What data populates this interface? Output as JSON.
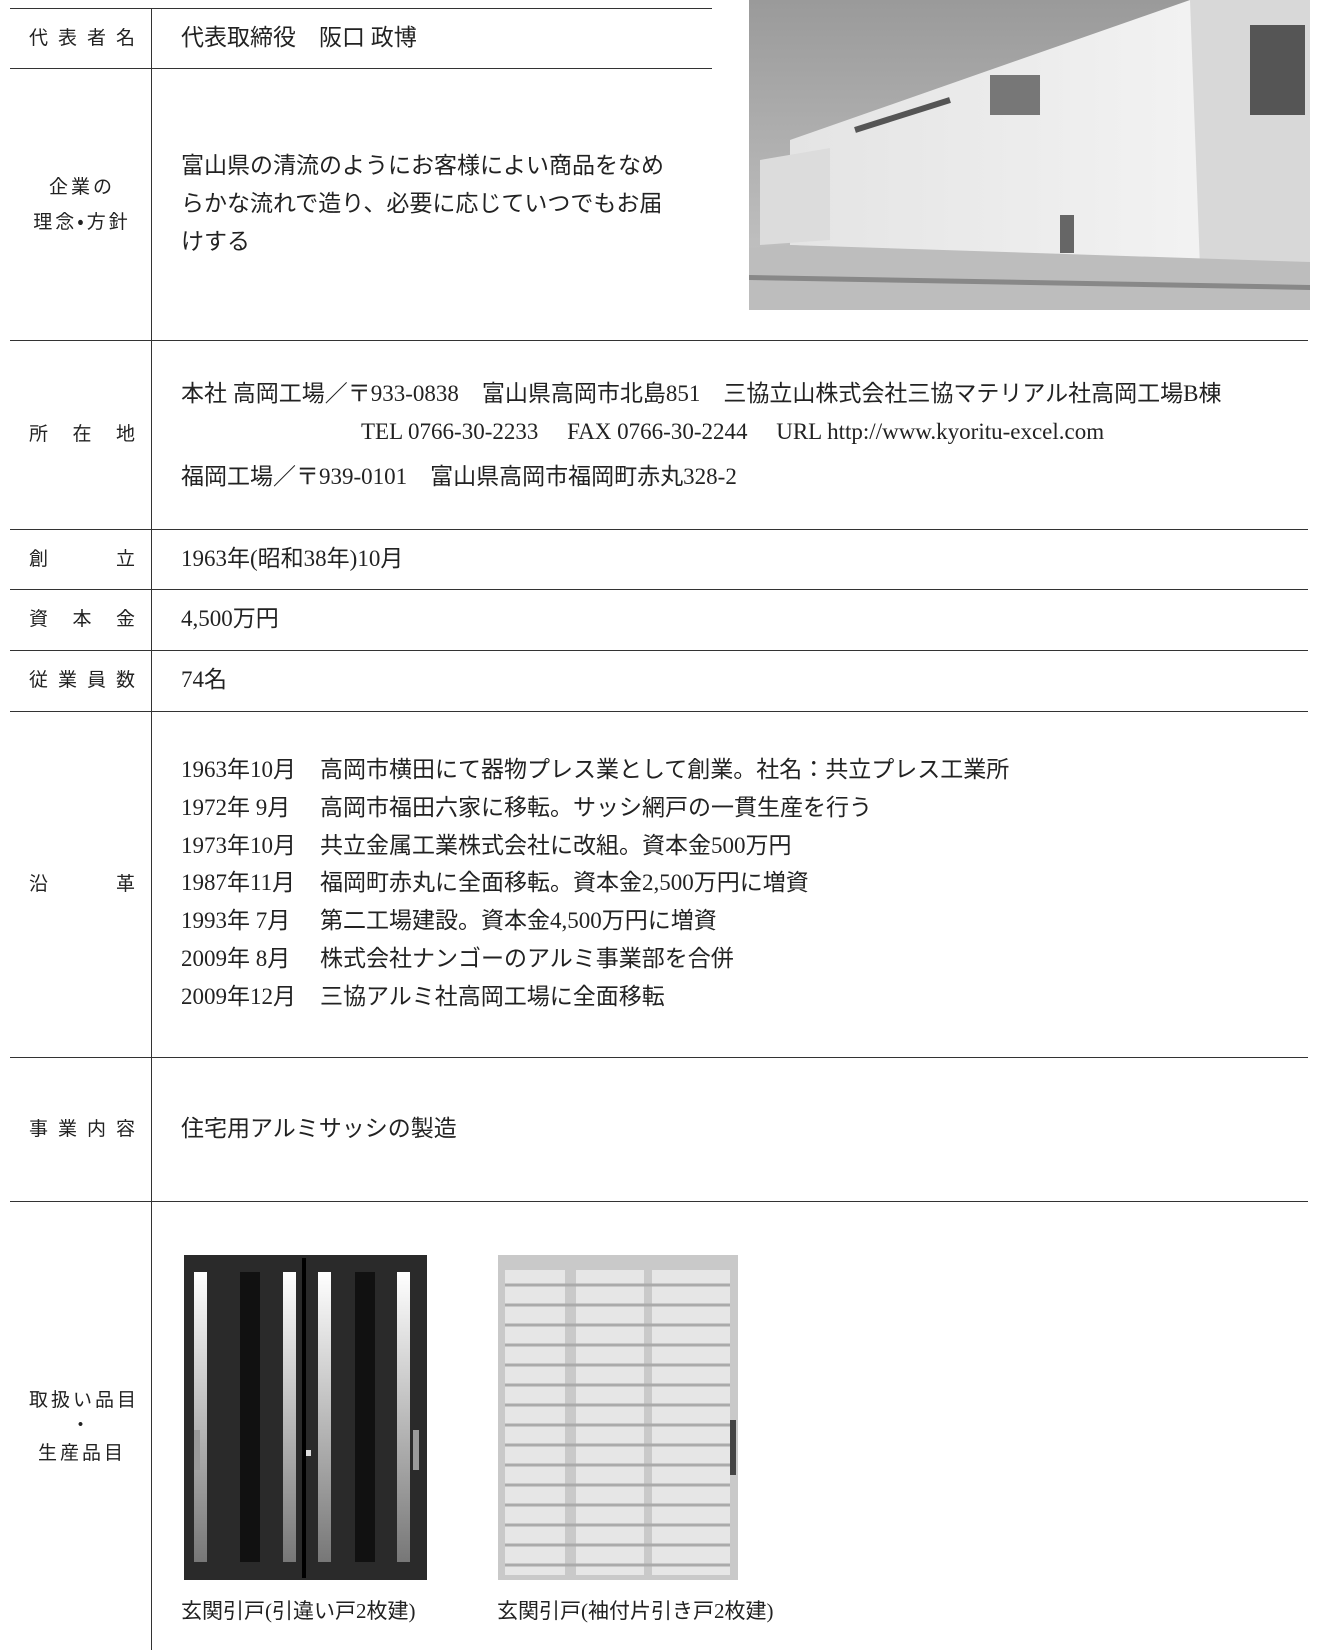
{
  "rows": [
    {
      "label": [
        "代表者名"
      ],
      "lines": [
        "代表取締役　阪口 政博"
      ]
    },
    {
      "label": [
        "企業の",
        "理念・方針"
      ],
      "lines": [
        "富山県の清流のようにお客様によい商品をなめ",
        "らかな流れで造り、必要に応じていつでもお届",
        "けする"
      ]
    },
    {
      "label": [
        "所在地"
      ],
      "lines": [
        "本社 高岡工場／〒933-0838　富山県高岡市北島851　三協立山株式会社三協マテリアル社高岡工場B棟",
        "TEL 0766-30-2233　 FAX 0766-30-2244　 URL http://www.kyoritu-excel.com",
        "福岡工場／〒939-0101　富山県高岡市福岡町赤丸328-2"
      ]
    },
    {
      "label": [
        "創立"
      ],
      "lines": [
        "1963年(昭和38年)10月"
      ]
    },
    {
      "label": [
        "資本金"
      ],
      "lines": [
        "4,500万円"
      ]
    },
    {
      "label": [
        "従業員数"
      ],
      "lines": [
        "74名"
      ]
    },
    {
      "label": [
        "沿革"
      ],
      "history": [
        {
          "date": "1963年10月",
          "text": "高岡市横田にて器物プレス業として創業。社名：共立プレス工業所"
        },
        {
          "date": "1972年 9月",
          "text": "高岡市福田六家に移転。サッシ網戸の一貫生産を行う"
        },
        {
          "date": "1973年10月",
          "text": "共立金属工業株式会社に改組。資本金500万円"
        },
        {
          "date": "1987年11月",
          "text": "福岡町赤丸に全面移転。資本金2,500万円に増資"
        },
        {
          "date": "1993年 7月",
          "text": "第二工場建設。資本金4,500万円に増資"
        },
        {
          "date": "2009年 8月",
          "text": "株式会社ナンゴーのアルミ事業部を合併"
        },
        {
          "date": "2009年12月",
          "text": "三協アルミ社高岡工場に全面移転"
        }
      ]
    },
    {
      "label": [
        "事業内容"
      ],
      "lines": [
        "住宅用アルミサッシの製造"
      ]
    },
    {
      "label": [
        "取扱い品目",
        "・",
        "生産品目"
      ],
      "products": [
        "玄関引戸(引違い戸2枚建)",
        "玄関引戸(袖付片引き戸2枚建)"
      ]
    }
  ]
}
